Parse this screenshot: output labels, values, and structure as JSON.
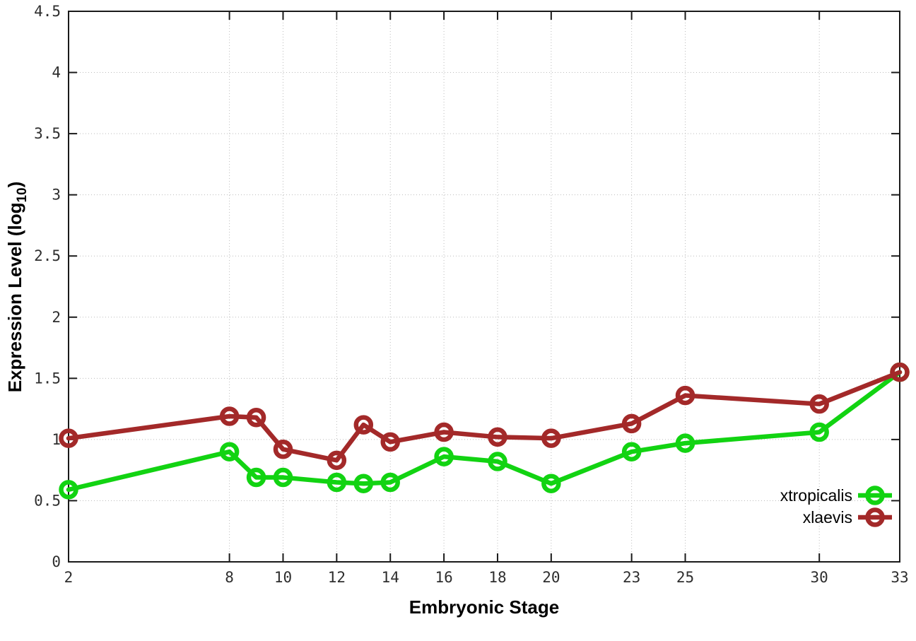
{
  "chart_data": {
    "type": "line",
    "title": "",
    "xlabel": "Embryonic Stage",
    "ylabel": "Expression Level (log10)",
    "ylabel_parts": {
      "prefix": "Expression Level (log",
      "subscript": "10",
      "suffix": ")"
    },
    "xlim": [
      2,
      33
    ],
    "ylim": [
      0,
      4.5
    ],
    "x_ticks": [
      2,
      8,
      10,
      12,
      14,
      16,
      18,
      20,
      23,
      25,
      30,
      33
    ],
    "y_ticks": [
      0,
      0.5,
      1,
      1.5,
      2,
      2.5,
      3,
      3.5,
      4,
      4.5
    ],
    "grid": true,
    "legend_position": "bottom-right",
    "x": [
      2,
      8,
      9,
      10,
      12,
      13,
      14,
      16,
      18,
      20,
      23,
      25,
      30,
      33
    ],
    "series": [
      {
        "name": "xtropicalis",
        "color": "#12D312",
        "values": [
          0.59,
          0.9,
          0.69,
          0.69,
          0.65,
          0.64,
          0.65,
          0.86,
          0.82,
          0.64,
          0.9,
          0.97,
          1.06,
          1.55
        ]
      },
      {
        "name": "xlaevis",
        "color": "#A32929",
        "values": [
          1.01,
          1.19,
          1.18,
          0.92,
          0.83,
          1.12,
          0.98,
          1.06,
          1.02,
          1.01,
          1.13,
          1.36,
          1.29,
          1.55
        ]
      }
    ],
    "colors": {
      "background": "#ffffff",
      "grid": "#bcbcbc",
      "axis": "#1a1a1a",
      "tick_label": "#2e2e2e"
    }
  }
}
